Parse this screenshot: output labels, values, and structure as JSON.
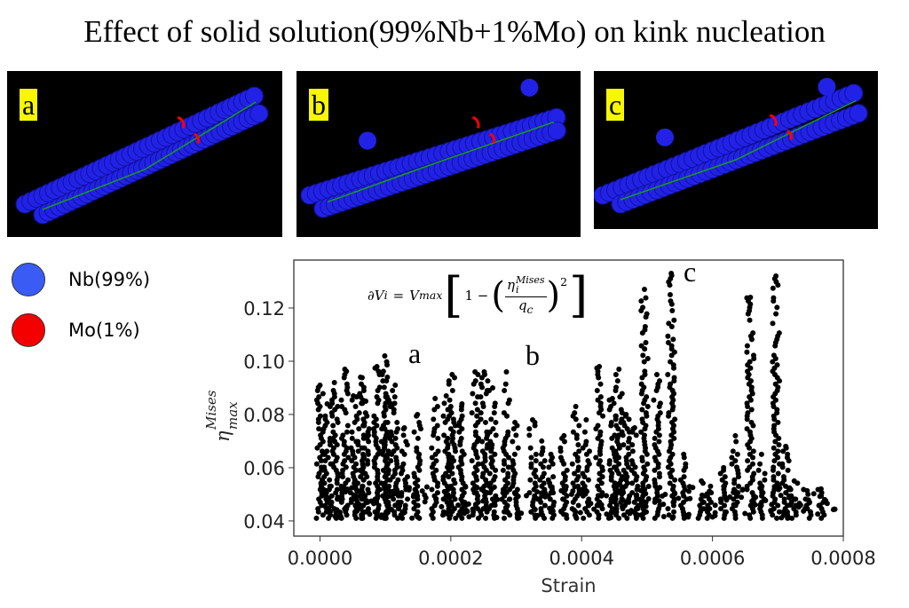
{
  "title": "Effect of solid solution(99%Nb+1%Mo) on kink nucleation",
  "panels": [
    {
      "label": "a"
    },
    {
      "label": "b"
    },
    {
      "label": "c"
    }
  ],
  "legend": [
    {
      "label": "Nb(99%)",
      "color": "#3a5cf5"
    },
    {
      "label": "Mo(1%)",
      "color": "#f50000"
    }
  ],
  "equation": {
    "lhs": "∂V",
    "lhs_sub": "i",
    "eq": "=",
    "vmax": "V",
    "vmax_sub": "max",
    "one": "1 −",
    "eta": "η",
    "eta_sup": "Mises",
    "eta_sub": "i",
    "qc": "q",
    "qc_sub": "c",
    "power": "2"
  },
  "annotations": [
    "a",
    "b",
    "c"
  ],
  "chart_data": {
    "type": "scatter",
    "title": "",
    "xlabel": "Strain",
    "ylabel": "η_max^Mises",
    "xlim": [
      -4e-05,
      0.0008
    ],
    "ylim": [
      0.0343,
      0.138
    ],
    "xticks": [
      "0.0000",
      "0.0002",
      "0.0004",
      "0.0006",
      "0.0008"
    ],
    "yticks": [
      "0.04",
      "0.06",
      "0.08",
      "0.10",
      "0.12"
    ],
    "grid": false,
    "marker_color": "#000000",
    "y_floor": 0.041,
    "columns": {
      "x": [
        0,
        1.1e-05,
        2.2e-05,
        3.8e-05,
        5.1e-05,
        6.2e-05,
        7e-05,
        8.7e-05,
        9.9e-05,
        0.000103,
        0.000115,
        0.000129,
        0.000149,
        0.000176,
        0.000193,
        0.000202,
        0.000217,
        0.000237,
        0.000251,
        0.000264,
        0.000285,
        0.000298,
        0.000325,
        0.000339,
        0.000353,
        0.000373,
        0.000391,
        0.000407,
        0.000427,
        0.000447,
        0.000457,
        0.000468,
        0.000481,
        0.000496,
        0.000515,
        0.000537,
        0.000556,
        0.000583,
        0.000597,
        0.000617,
        0.000635,
        0.000658,
        0.000675,
        0.000697,
        0.000712,
        0.000725,
        0.000746,
        0.000766
      ],
      "y_max": [
        0.091,
        0.084,
        0.092,
        0.097,
        0.087,
        0.094,
        0.085,
        0.098,
        0.102,
        0.094,
        0.091,
        0.075,
        0.08,
        0.086,
        0.087,
        0.095,
        0.084,
        0.096,
        0.096,
        0.09,
        0.096,
        0.077,
        0.078,
        0.07,
        0.065,
        0.072,
        0.083,
        0.078,
        0.098,
        0.086,
        0.097,
        0.08,
        0.075,
        0.127,
        0.095,
        0.133,
        0.065,
        0.055,
        0.053,
        0.06,
        0.072,
        0.124,
        0.065,
        0.132,
        0.068,
        0.055,
        0.05,
        0.052
      ]
    }
  }
}
